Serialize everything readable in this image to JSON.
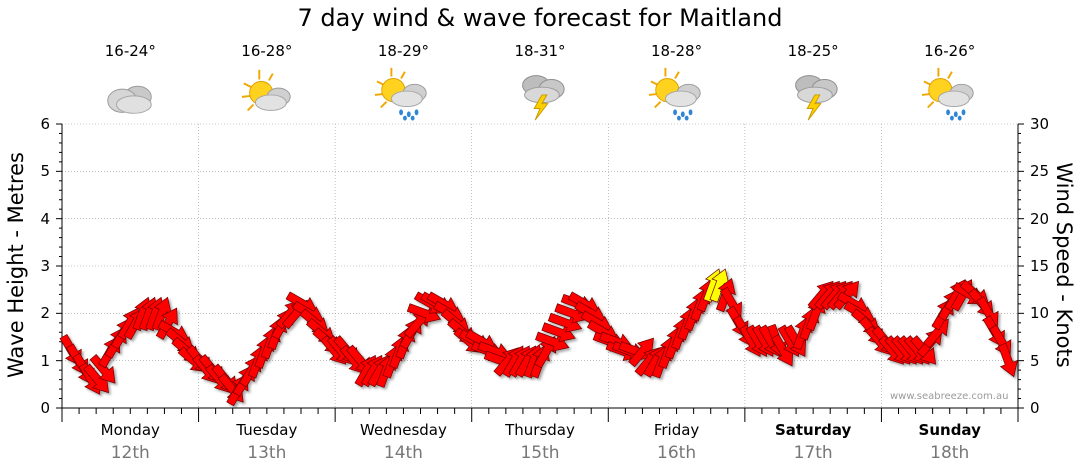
{
  "chart_data": {
    "type": "wind-wave-forecast",
    "title": "7 day wind & wave forecast for Maitland",
    "ylabel_left": "Wave Height - Metres",
    "ylabel_right": "Wind Speed - Knots",
    "ylim_left": [
      0,
      6
    ],
    "ylim_right": [
      0,
      30
    ],
    "yticks_left": [
      "0",
      "1",
      "2",
      "3",
      "4",
      "5",
      "6"
    ],
    "yticks_right": [
      "0",
      "5",
      "10",
      "15",
      "20",
      "25",
      "30"
    ],
    "days": [
      {
        "day": "Monday",
        "date": "12th",
        "temp": "16-24°",
        "icon": "cloudy-icon",
        "weekend": false
      },
      {
        "day": "Tuesday",
        "date": "13th",
        "temp": "16-28°",
        "icon": "partly-cloudy-icon",
        "weekend": false
      },
      {
        "day": "Wednesday",
        "date": "14th",
        "temp": "18-29°",
        "icon": "sun-showers-icon",
        "weekend": false
      },
      {
        "day": "Thursday",
        "date": "15th",
        "temp": "18-31°",
        "icon": "thunderstorm-icon",
        "weekend": false
      },
      {
        "day": "Friday",
        "date": "16th",
        "temp": "18-28°",
        "icon": "sun-showers-icon",
        "weekend": false
      },
      {
        "day": "Saturday",
        "date": "17th",
        "temp": "18-25°",
        "icon": "thunderstorm-icon",
        "weekend": true
      },
      {
        "day": "Sunday",
        "date": "18th",
        "temp": "16-26°",
        "icon": "sun-showers-icon",
        "weekend": true
      }
    ],
    "wind_knots": [
      6,
      5,
      4,
      3,
      3,
      4,
      6,
      7,
      8,
      9,
      9,
      10,
      10,
      10,
      10,
      9,
      8,
      7,
      6,
      5,
      5,
      4,
      4,
      3,
      3,
      2,
      2,
      3,
      4,
      5,
      6,
      7,
      8,
      9,
      10,
      10,
      11,
      10,
      9,
      8,
      7,
      6,
      6,
      6,
      5,
      5,
      4,
      4,
      4,
      4,
      5,
      6,
      7,
      8,
      9,
      10,
      11,
      11,
      11,
      10,
      9,
      8,
      7,
      7,
      7,
      6,
      6,
      5,
      5,
      5,
      5,
      5,
      5,
      5,
      6,
      7,
      8,
      9,
      10,
      11,
      11,
      10,
      9,
      8,
      7,
      7,
      6,
      6,
      6,
      6,
      5,
      5,
      5,
      6,
      7,
      8,
      9,
      10,
      11,
      12,
      13,
      13,
      12,
      11,
      9,
      8,
      7,
      7,
      7,
      7,
      7,
      6,
      7,
      7,
      8,
      9,
      10,
      12,
      12,
      12,
      12,
      12,
      11,
      10,
      9,
      8,
      7,
      7,
      6,
      6,
      6,
      6,
      6,
      6,
      7,
      8,
      10,
      11,
      12,
      12,
      12,
      12,
      11,
      10,
      8,
      7,
      5
    ],
    "wind_dir_deg": [
      330,
      330,
      330,
      330,
      320,
      320,
      210,
      210,
      210,
      210,
      210,
      200,
      200,
      200,
      200,
      210,
      300,
      310,
      310,
      310,
      320,
      320,
      320,
      320,
      320,
      320,
      210,
      210,
      210,
      200,
      200,
      200,
      200,
      210,
      220,
      220,
      300,
      300,
      310,
      310,
      310,
      320,
      320,
      320,
      320,
      320,
      210,
      210,
      210,
      200,
      200,
      200,
      200,
      210,
      220,
      290,
      300,
      300,
      300,
      300,
      310,
      310,
      310,
      300,
      300,
      290,
      290,
      290,
      220,
      210,
      210,
      210,
      200,
      200,
      210,
      290,
      290,
      290,
      290,
      290,
      300,
      300,
      300,
      300,
      290,
      290,
      290,
      290,
      290,
      220,
      220,
      210,
      200,
      200,
      200,
      200,
      200,
      200,
      200,
      200,
      200,
      200,
      200,
      330,
      330,
      330,
      330,
      330,
      330,
      330,
      340,
      330,
      330,
      330,
      200,
      200,
      200,
      220,
      220,
      220,
      220,
      220,
      300,
      300,
      310,
      320,
      320,
      320,
      320,
      320,
      320,
      320,
      320,
      320,
      220,
      220,
      210,
      210,
      210,
      210,
      300,
      310,
      320,
      330,
      330,
      330,
      340
    ]
  },
  "watermark": "www.seabreeze.com.au",
  "colors": {
    "arrow": "#ff0000",
    "arrow_strong": "#ffff00",
    "arrow_outline": "#6e0000",
    "grid": "#9a9a9a",
    "axis": "#000000"
  }
}
